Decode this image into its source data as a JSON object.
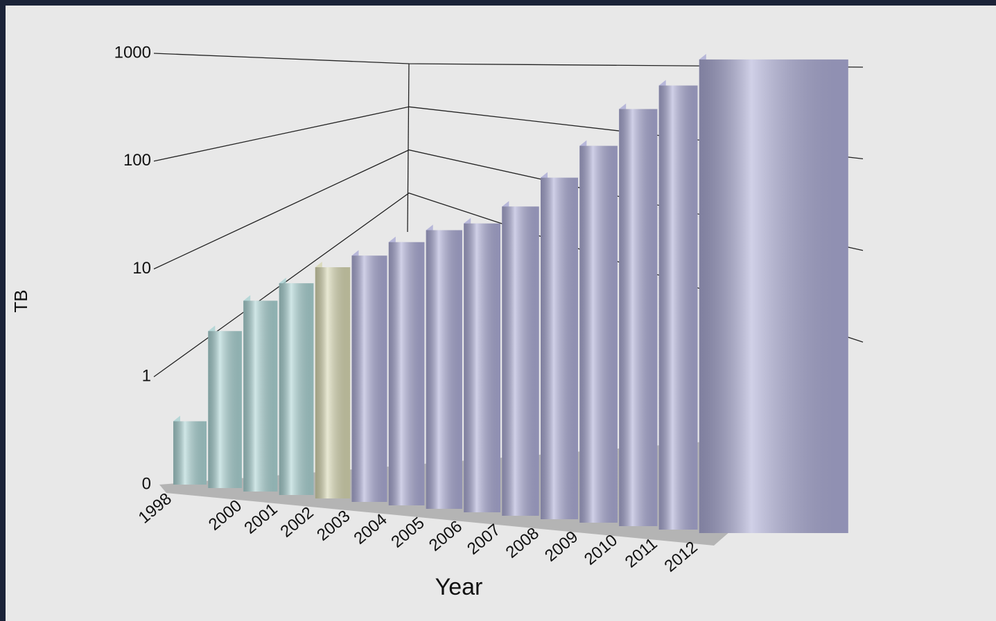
{
  "chart_data": {
    "type": "bar3d",
    "xlabel": "Year",
    "ylabel": "TB",
    "categories": [
      "1998",
      null,
      "2000",
      "2001",
      "2002",
      "2003",
      "2004",
      "2005",
      "2006",
      "2007",
      "2008",
      "2009",
      "2010",
      "2011",
      "2012"
    ],
    "values": [
      0.4,
      3,
      6,
      9,
      13,
      17,
      23,
      30,
      35,
      50,
      90,
      170,
      350,
      550,
      900
    ],
    "colors": [
      "#a9d2d2",
      "#a9d2d2",
      "#a9d2d2",
      "#a9d2d2",
      "#d6d6b0",
      "#aaaad4",
      "#aaaad4",
      "#aaaad4",
      "#aaaad4",
      "#aaaad4",
      "#aaaad4",
      "#aaaad4",
      "#aaaad4",
      "#aaaad4",
      "#aaaad4"
    ],
    "log_scale": true,
    "ylim": [
      0,
      1000
    ],
    "yticks": [
      0,
      1,
      10,
      100,
      1000
    ],
    "grid": true
  }
}
